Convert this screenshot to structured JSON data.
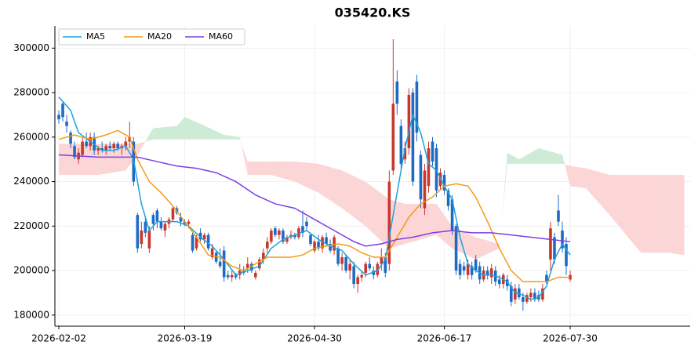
{
  "chart_data": {
    "type": "candlestick",
    "title": "035420.KS",
    "up_color": "#c9372c",
    "down_color": "#1f6bc4",
    "grid": true,
    "legend": "upper left",
    "xlim": [
      -1,
      160.5
    ],
    "ylim": [
      175000,
      310000
    ],
    "xticks": [
      {
        "value": 0,
        "label": "2026-02-02"
      },
      {
        "value": 32,
        "label": "2026-03-19"
      },
      {
        "value": 65,
        "label": "2026-04-30"
      },
      {
        "value": 98,
        "label": "2026-06-17"
      },
      {
        "value": 130,
        "label": "2026-07-30"
      }
    ],
    "yticks": [
      180000,
      200000,
      220000,
      240000,
      260000,
      280000,
      300000
    ],
    "x": [
      0,
      1,
      2,
      3,
      4,
      5,
      6,
      7,
      8,
      9,
      10,
      11,
      12,
      13,
      14,
      15,
      16,
      17,
      18,
      19,
      20,
      21,
      22,
      23,
      24,
      25,
      26,
      27,
      28,
      29,
      30,
      31,
      32,
      33,
      34,
      35,
      36,
      37,
      38,
      39,
      40,
      41,
      42,
      43,
      44,
      45,
      46,
      47,
      48,
      49,
      50,
      51,
      52,
      53,
      54,
      55,
      56,
      57,
      58,
      59,
      60,
      61,
      62,
      63,
      64,
      65,
      66,
      67,
      68,
      69,
      70,
      71,
      72,
      73,
      74,
      75,
      76,
      77,
      78,
      79,
      80,
      81,
      82,
      83,
      84,
      85,
      86,
      87,
      88,
      89,
      90,
      91,
      92,
      93,
      94,
      95,
      96,
      97,
      98,
      99,
      100,
      101,
      102,
      103,
      104,
      105,
      106,
      107,
      108,
      109,
      110,
      111,
      112,
      113,
      114,
      115,
      116,
      117,
      118,
      119,
      120,
      121,
      122,
      123,
      124,
      125,
      126,
      127,
      128,
      129,
      130
    ],
    "open": [
      270000,
      275000,
      267000,
      262000,
      256000,
      250000,
      252000,
      258000,
      256000,
      260000,
      254000,
      255000,
      254000,
      256000,
      255000,
      257000,
      255000,
      256000,
      258000,
      258000,
      225000,
      212000,
      222000,
      210000,
      225000,
      227000,
      222000,
      218000,
      221000,
      223000,
      228000,
      224000,
      222000,
      221000,
      216000,
      210000,
      217000,
      214000,
      216000,
      206000,
      208000,
      204000,
      209000,
      198000,
      197000,
      198000,
      198000,
      200000,
      201000,
      203000,
      197000,
      201000,
      205000,
      210000,
      213000,
      219000,
      216000,
      218000,
      213000,
      215000,
      216000,
      215000,
      220000,
      222000,
      216000,
      209000,
      213000,
      210000,
      215000,
      212000,
      209000,
      210000,
      203000,
      206000,
      200000,
      202000,
      194000,
      197000,
      199000,
      203000,
      200000,
      198000,
      203000,
      206000,
      203000,
      245000,
      285000,
      265000,
      250000,
      255000,
      280000,
      285000,
      252000,
      228000,
      238000,
      258000,
      255000,
      238000,
      243000,
      236000,
      232000,
      220000,
      203000,
      202000,
      198000,
      202000,
      205000,
      202000,
      196000,
      200000,
      197000,
      200000,
      196000,
      194000,
      196000,
      193000,
      187000,
      192000,
      188000,
      186000,
      188000,
      190000,
      189000,
      187000,
      198000,
      205000,
      215000,
      227000,
      218000,
      212000,
      196000
    ],
    "high": [
      272000,
      276000,
      270000,
      263000,
      258000,
      255000,
      260000,
      262000,
      262000,
      262000,
      256000,
      258000,
      257000,
      258000,
      258000,
      258000,
      257000,
      260000,
      267000,
      260000,
      226000,
      222000,
      224000,
      220000,
      226000,
      228000,
      224000,
      222000,
      224000,
      229000,
      229000,
      226000,
      223000,
      223000,
      217000,
      216000,
      219000,
      217000,
      217000,
      212000,
      209000,
      210000,
      211000,
      200000,
      200000,
      199000,
      203000,
      202000,
      206000,
      204000,
      200000,
      206000,
      210000,
      215000,
      219000,
      220000,
      219000,
      219000,
      216000,
      218000,
      217000,
      220000,
      227000,
      224000,
      217000,
      214000,
      216000,
      216000,
      217000,
      214000,
      216000,
      211000,
      208000,
      207000,
      205000,
      204000,
      198000,
      200000,
      204000,
      206000,
      202000,
      204000,
      210000,
      208000,
      245000,
      304000,
      290000,
      268000,
      258000,
      282000,
      282000,
      288000,
      254000,
      248000,
      258000,
      260000,
      257000,
      246000,
      245000,
      237000,
      234000,
      221000,
      205000,
      204000,
      205000,
      204000,
      207000,
      204000,
      202000,
      202000,
      203000,
      202000,
      198000,
      199000,
      198000,
      195000,
      194000,
      194000,
      190000,
      190000,
      192000,
      192000,
      191000,
      194000,
      200000,
      222000,
      217000,
      234000,
      222000,
      215000,
      200000
    ],
    "low": [
      266000,
      267000,
      262000,
      255000,
      250000,
      248000,
      251000,
      255000,
      254000,
      252000,
      252000,
      253000,
      252000,
      254000,
      253000,
      254000,
      252000,
      254000,
      255000,
      238000,
      208000,
      210000,
      215000,
      208000,
      218000,
      219000,
      218000,
      215000,
      219000,
      222000,
      225000,
      220000,
      220000,
      219000,
      208000,
      209000,
      213000,
      212000,
      209000,
      205000,
      203000,
      201000,
      195000,
      196000,
      195000,
      196000,
      196000,
      198000,
      199000,
      199000,
      196000,
      200000,
      203000,
      208000,
      212000,
      215000,
      214000,
      212000,
      212000,
      214000,
      214000,
      214000,
      215000,
      218000,
      211000,
      208000,
      209000,
      208000,
      211000,
      208000,
      207000,
      202000,
      200000,
      199000,
      196000,
      192000,
      190000,
      195000,
      197000,
      200000,
      196000,
      197000,
      200000,
      197000,
      200000,
      243000,
      270000,
      245000,
      248000,
      252000,
      238000,
      258000,
      228000,
      225000,
      235000,
      247000,
      233000,
      236000,
      234000,
      227000,
      216000,
      198000,
      196000,
      198000,
      196000,
      196000,
      199000,
      194000,
      195000,
      196000,
      194000,
      193000,
      192000,
      192000,
      191000,
      184000,
      185000,
      187000,
      182000,
      185000,
      186000,
      186000,
      186000,
      186000,
      194000,
      200000,
      203000,
      220000,
      208000,
      198000,
      195000
    ],
    "close": [
      268000,
      269000,
      265000,
      257000,
      251000,
      253000,
      258000,
      256000,
      260000,
      254000,
      255000,
      254000,
      256000,
      255000,
      257000,
      255000,
      256000,
      258000,
      260000,
      240000,
      210000,
      218000,
      217000,
      218000,
      221000,
      222000,
      219000,
      221000,
      223000,
      228000,
      226000,
      222000,
      221000,
      222000,
      209000,
      215000,
      214000,
      216000,
      210000,
      210000,
      204000,
      202000,
      197000,
      197000,
      198000,
      197000,
      200000,
      199000,
      203000,
      200000,
      199000,
      205000,
      208000,
      213000,
      218000,
      216000,
      218000,
      213000,
      215000,
      216000,
      215000,
      219000,
      217000,
      220000,
      212000,
      213000,
      210000,
      215000,
      212000,
      209000,
      215000,
      203000,
      206000,
      200000,
      203000,
      194000,
      197000,
      198000,
      203000,
      201000,
      198000,
      203000,
      206000,
      199000,
      240000,
      275000,
      275000,
      248000,
      255000,
      279000,
      240000,
      262000,
      232000,
      245000,
      255000,
      249000,
      236000,
      244000,
      236000,
      229000,
      218000,
      200000,
      198000,
      200000,
      203000,
      198000,
      200000,
      196000,
      200000,
      198000,
      201000,
      195000,
      194000,
      198000,
      193000,
      186000,
      192000,
      188000,
      186000,
      189000,
      190000,
      187000,
      187000,
      192000,
      195000,
      219000,
      205000,
      222000,
      210000,
      202000,
      198000
    ],
    "series": [
      {
        "name": "MA5",
        "color": "#1ca3de",
        "x": [
          0,
          3,
          5,
          8,
          11,
          14,
          17,
          19,
          21,
          23,
          25,
          27,
          30,
          33,
          36,
          39,
          42,
          45,
          48,
          51,
          54,
          57,
          60,
          63,
          66,
          69,
          72,
          75,
          78,
          81,
          83,
          85,
          88,
          90,
          92,
          94,
          96,
          98,
          100,
          102,
          104,
          106,
          108,
          110,
          112,
          114,
          116,
          118,
          120,
          122,
          124,
          126,
          128,
          130
        ],
        "values": [
          278000,
          272000,
          262000,
          258000,
          254000,
          254000,
          256000,
          250000,
          230000,
          218000,
          222000,
          222000,
          222000,
          220000,
          215000,
          211000,
          205000,
          198000,
          200000,
          202000,
          210000,
          214000,
          216000,
          218000,
          214000,
          211000,
          209000,
          203000,
          198000,
          200000,
          205000,
          225000,
          255000,
          270000,
          262000,
          248000,
          245000,
          238000,
          232000,
          215000,
          203000,
          200000,
          198000,
          198000,
          197000,
          195000,
          190000,
          189000,
          187000,
          188000,
          193000,
          205000,
          212000,
          207000
        ]
      },
      {
        "name": "MA20",
        "color": "#f39c12",
        "x": [
          0,
          4,
          8,
          12,
          15,
          18,
          20,
          23,
          26,
          29,
          32,
          35,
          38,
          41,
          44,
          47,
          50,
          53,
          56,
          59,
          62,
          65,
          68,
          71,
          74,
          77,
          80,
          83,
          86,
          89,
          92,
          95,
          98,
          101,
          104,
          106,
          109,
          112,
          115,
          118,
          121,
          124,
          127,
          130
        ],
        "values": [
          259000,
          261000,
          259000,
          261000,
          263000,
          260000,
          250000,
          240000,
          235000,
          229000,
          222000,
          215000,
          207000,
          206000,
          202000,
          200000,
          203000,
          206000,
          206000,
          206000,
          207000,
          210000,
          211000,
          212000,
          211000,
          208000,
          206000,
          206000,
          215000,
          224000,
          230000,
          233000,
          238000,
          239000,
          238000,
          233000,
          222000,
          210000,
          200000,
          195000,
          195000,
          195000,
          197000,
          197000
        ]
      },
      {
        "name": "MA60",
        "color": "#7b3fe4",
        "x": [
          0,
          10,
          20,
          25,
          30,
          35,
          40,
          45,
          50,
          55,
          60,
          65,
          70,
          75,
          78,
          82,
          86,
          90,
          95,
          100,
          105,
          110,
          115,
          120,
          125,
          130
        ],
        "values": [
          252000,
          251000,
          251000,
          249000,
          247000,
          246000,
          244000,
          240000,
          234000,
          230000,
          228000,
          223000,
          218000,
          213000,
          211000,
          212000,
          214000,
          215000,
          217000,
          218000,
          217000,
          217000,
          216000,
          215000,
          214000,
          213000
        ]
      }
    ],
    "cloud": {
      "up_color": "#cdebd5",
      "down_color": "#fcd6d6",
      "x": [
        0,
        10,
        17,
        20,
        22,
        24,
        30,
        32,
        36,
        42,
        46,
        48,
        54,
        60,
        66,
        72,
        78,
        84,
        88,
        96,
        100,
        106,
        112,
        114,
        117,
        122,
        128,
        130,
        134,
        140,
        148,
        155,
        159
      ],
      "span_a": [
        243000,
        243000,
        245000,
        252000,
        258000,
        264000,
        265000,
        269000,
        266000,
        261000,
        260000,
        243000,
        243000,
        240000,
        235000,
        228000,
        220000,
        210000,
        212000,
        216000,
        210000,
        205000,
        210000,
        253000,
        250000,
        255000,
        252000,
        238000,
        237000,
        225000,
        208000,
        208000,
        207000
      ],
      "span_b": [
        257000,
        257000,
        257000,
        257000,
        258000,
        259000,
        259000,
        259000,
        259000,
        259000,
        259000,
        249000,
        249000,
        249000,
        248000,
        245000,
        240000,
        232000,
        230000,
        230000,
        220000,
        215000,
        212000,
        248000,
        248000,
        248000,
        248000,
        247000,
        246000,
        243000,
        243000,
        243000,
        243000
      ]
    }
  }
}
